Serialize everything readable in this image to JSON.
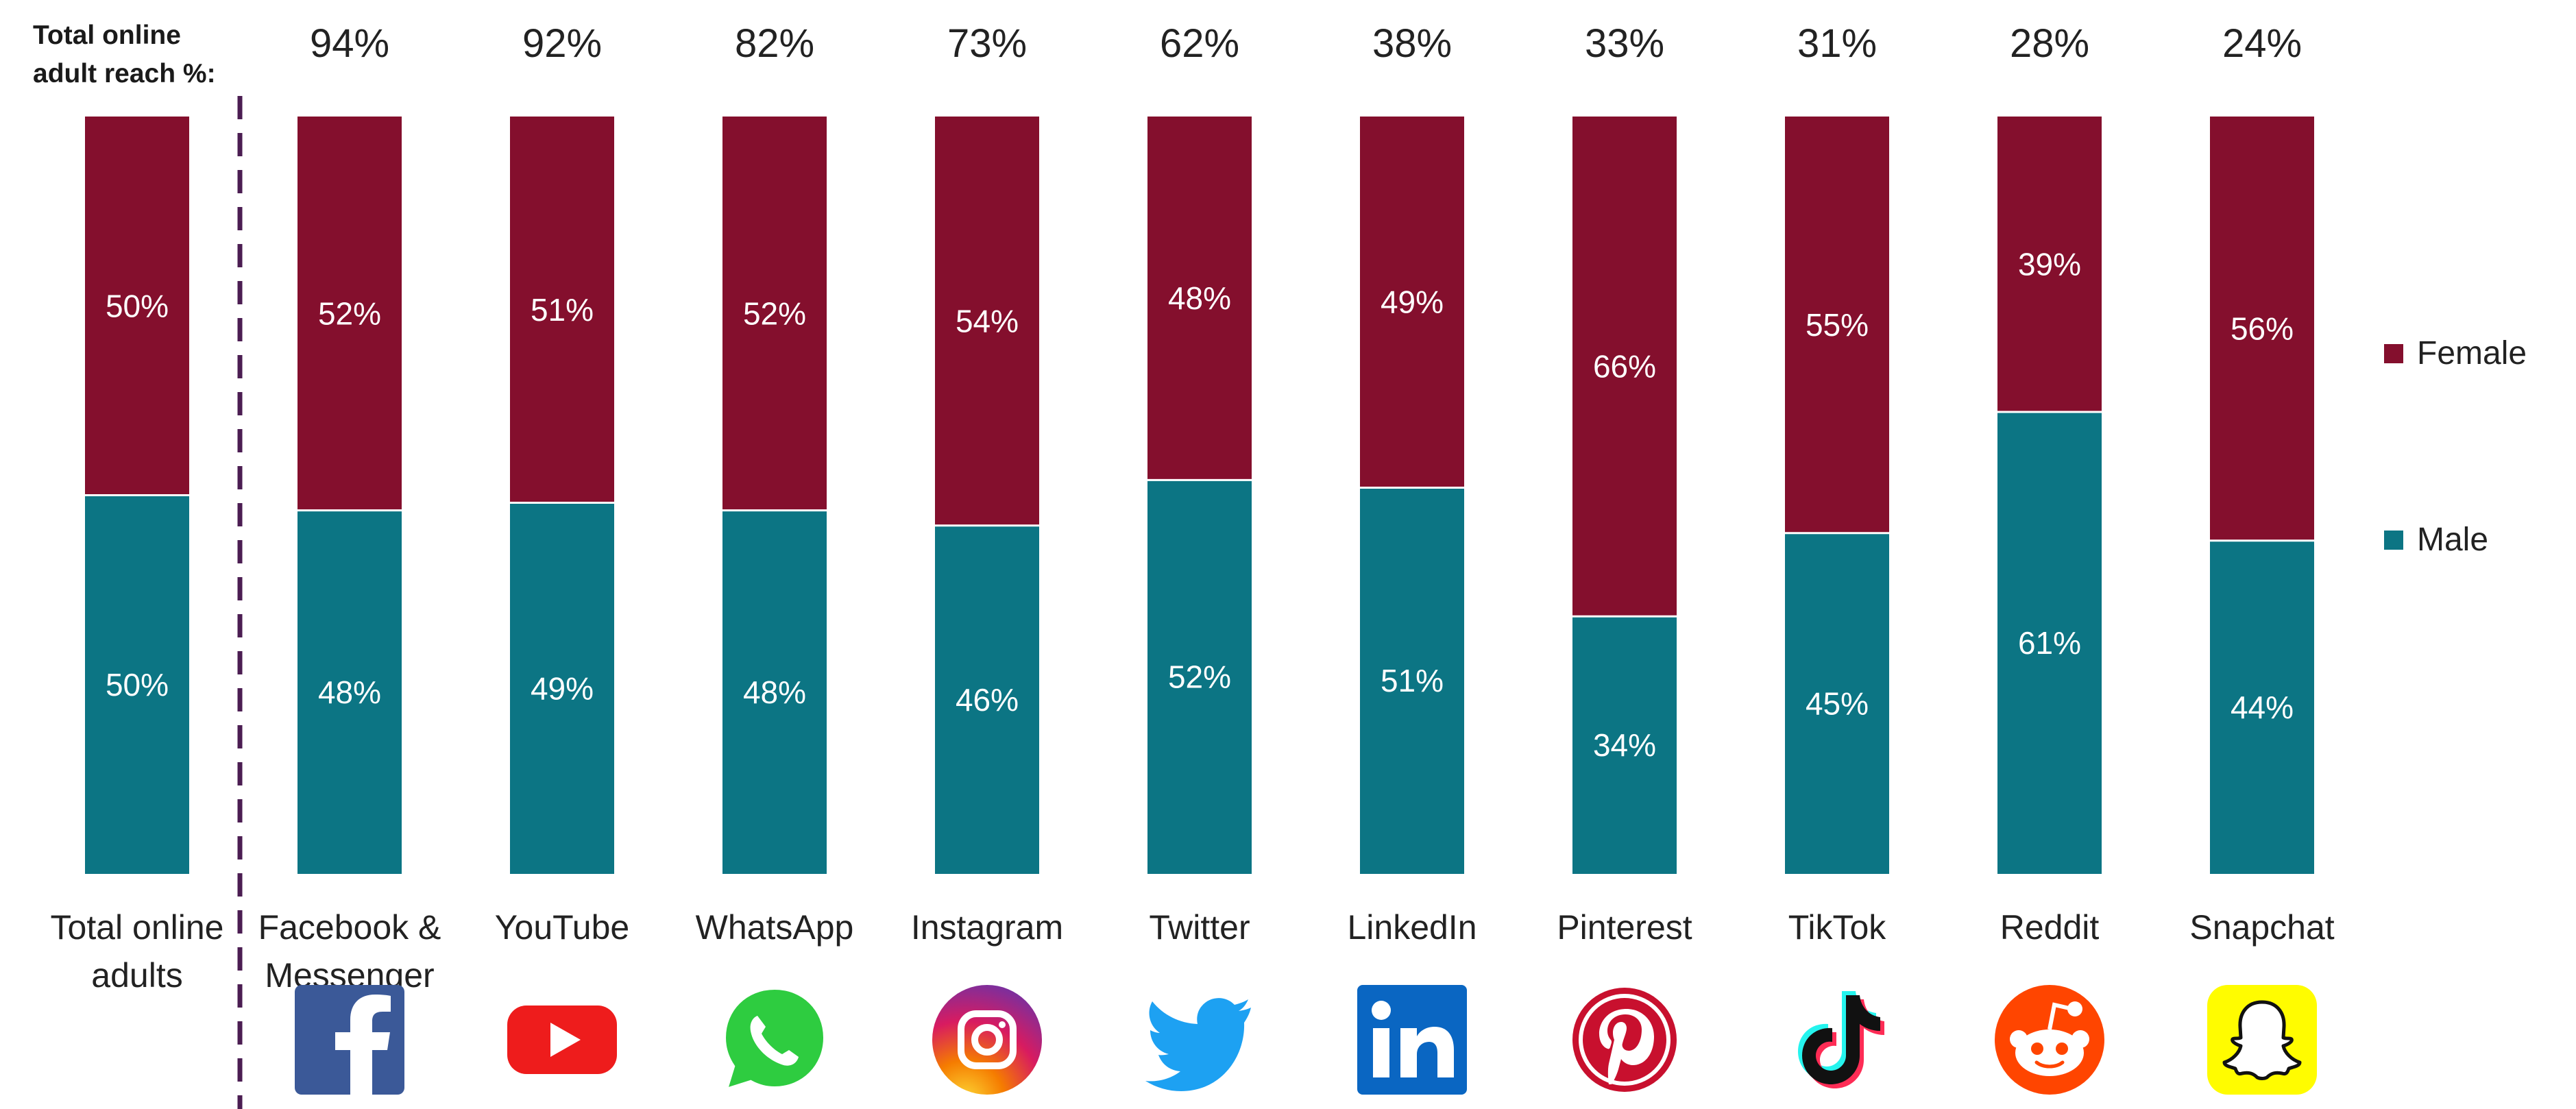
{
  "reach_title_lines": [
    "Total online",
    "adult reach %:"
  ],
  "chart_data": {
    "type": "bar",
    "stacked": true,
    "normalized": true,
    "categories": [
      "Total online adults",
      "Facebook & Messenger",
      "YouTube",
      "WhatsApp",
      "Instagram",
      "Twitter",
      "LinkedIn",
      "Pinterest",
      "TikTok",
      "Reddit",
      "Snapchat"
    ],
    "category_lines": [
      [
        "Total online",
        "adults"
      ],
      [
        "Facebook &",
        "Messenger"
      ],
      [
        "YouTube"
      ],
      [
        "WhatsApp"
      ],
      [
        "Instagram"
      ],
      [
        "Twitter"
      ],
      [
        "LinkedIn"
      ],
      [
        "Pinterest"
      ],
      [
        "TikTok"
      ],
      [
        "Reddit"
      ],
      [
        "Snapchat"
      ]
    ],
    "reach": [
      "",
      "94%",
      "92%",
      "82%",
      "73%",
      "62%",
      "38%",
      "33%",
      "31%",
      "28%",
      "24%"
    ],
    "series": [
      {
        "name": "Male",
        "color": "#0c7584",
        "values": [
          50,
          48,
          49,
          48,
          46,
          52,
          51,
          34,
          45,
          61,
          44
        ]
      },
      {
        "name": "Female",
        "color": "#840f2d",
        "values": [
          50,
          52,
          51,
          52,
          54,
          48,
          49,
          66,
          55,
          39,
          56
        ]
      }
    ],
    "ylim": [
      0,
      100
    ],
    "legend": "right",
    "grid": false
  },
  "legend_items": [
    {
      "label": "Female",
      "color": "#840f2d"
    },
    {
      "label": "Male",
      "color": "#0c7584"
    }
  ],
  "colors": {
    "female": "#840f2d",
    "male": "#0c7584",
    "divider": "#4b1d52",
    "label_text": "#ffffff"
  },
  "logos": [
    "facebook-icon",
    "youtube-icon",
    "whatsapp-icon",
    "instagram-icon",
    "twitter-icon",
    "linkedin-icon",
    "pinterest-icon",
    "tiktok-icon",
    "reddit-icon",
    "snapchat-icon"
  ]
}
